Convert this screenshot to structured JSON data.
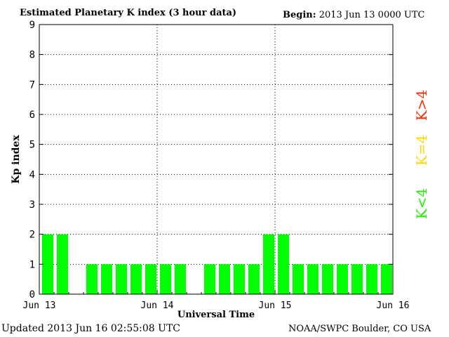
{
  "header": {
    "title": "Estimated Planetary K index (3 hour data)",
    "begin_label": "Begin:",
    "begin_value": "2013 Jun 13 0000 UTC"
  },
  "footer": {
    "updated": "Updated 2013 Jun 16 02:55:08 UTC",
    "source": "NOAA/SWPC Boulder, CO USA"
  },
  "legend": {
    "items": [
      {
        "label": "K>4",
        "color": "#ff2a00"
      },
      {
        "label": "K=4",
        "color": "#ffd700"
      },
      {
        "label": "K<4",
        "color": "#22ee00"
      }
    ]
  },
  "chart_data": {
    "type": "bar",
    "title": "Estimated Planetary K index (3 hour data)",
    "xlabel": "Universal Time",
    "ylabel": "Kp index",
    "ylim": [
      0,
      9
    ],
    "yticks": [
      "0",
      "1",
      "2",
      "3",
      "4",
      "5",
      "6",
      "7",
      "8",
      "9"
    ],
    "xticks": [
      "Jun 13",
      "Jun 14",
      "Jun 15",
      "Jun 16"
    ],
    "grid": true,
    "bar_color": "#00ff00",
    "slots_per_day": 8,
    "values": [
      2,
      2,
      0,
      1,
      1,
      1,
      1,
      1,
      1,
      1,
      0,
      1,
      1,
      1,
      1,
      2,
      2,
      1,
      1,
      1,
      1,
      1,
      1,
      1
    ]
  }
}
